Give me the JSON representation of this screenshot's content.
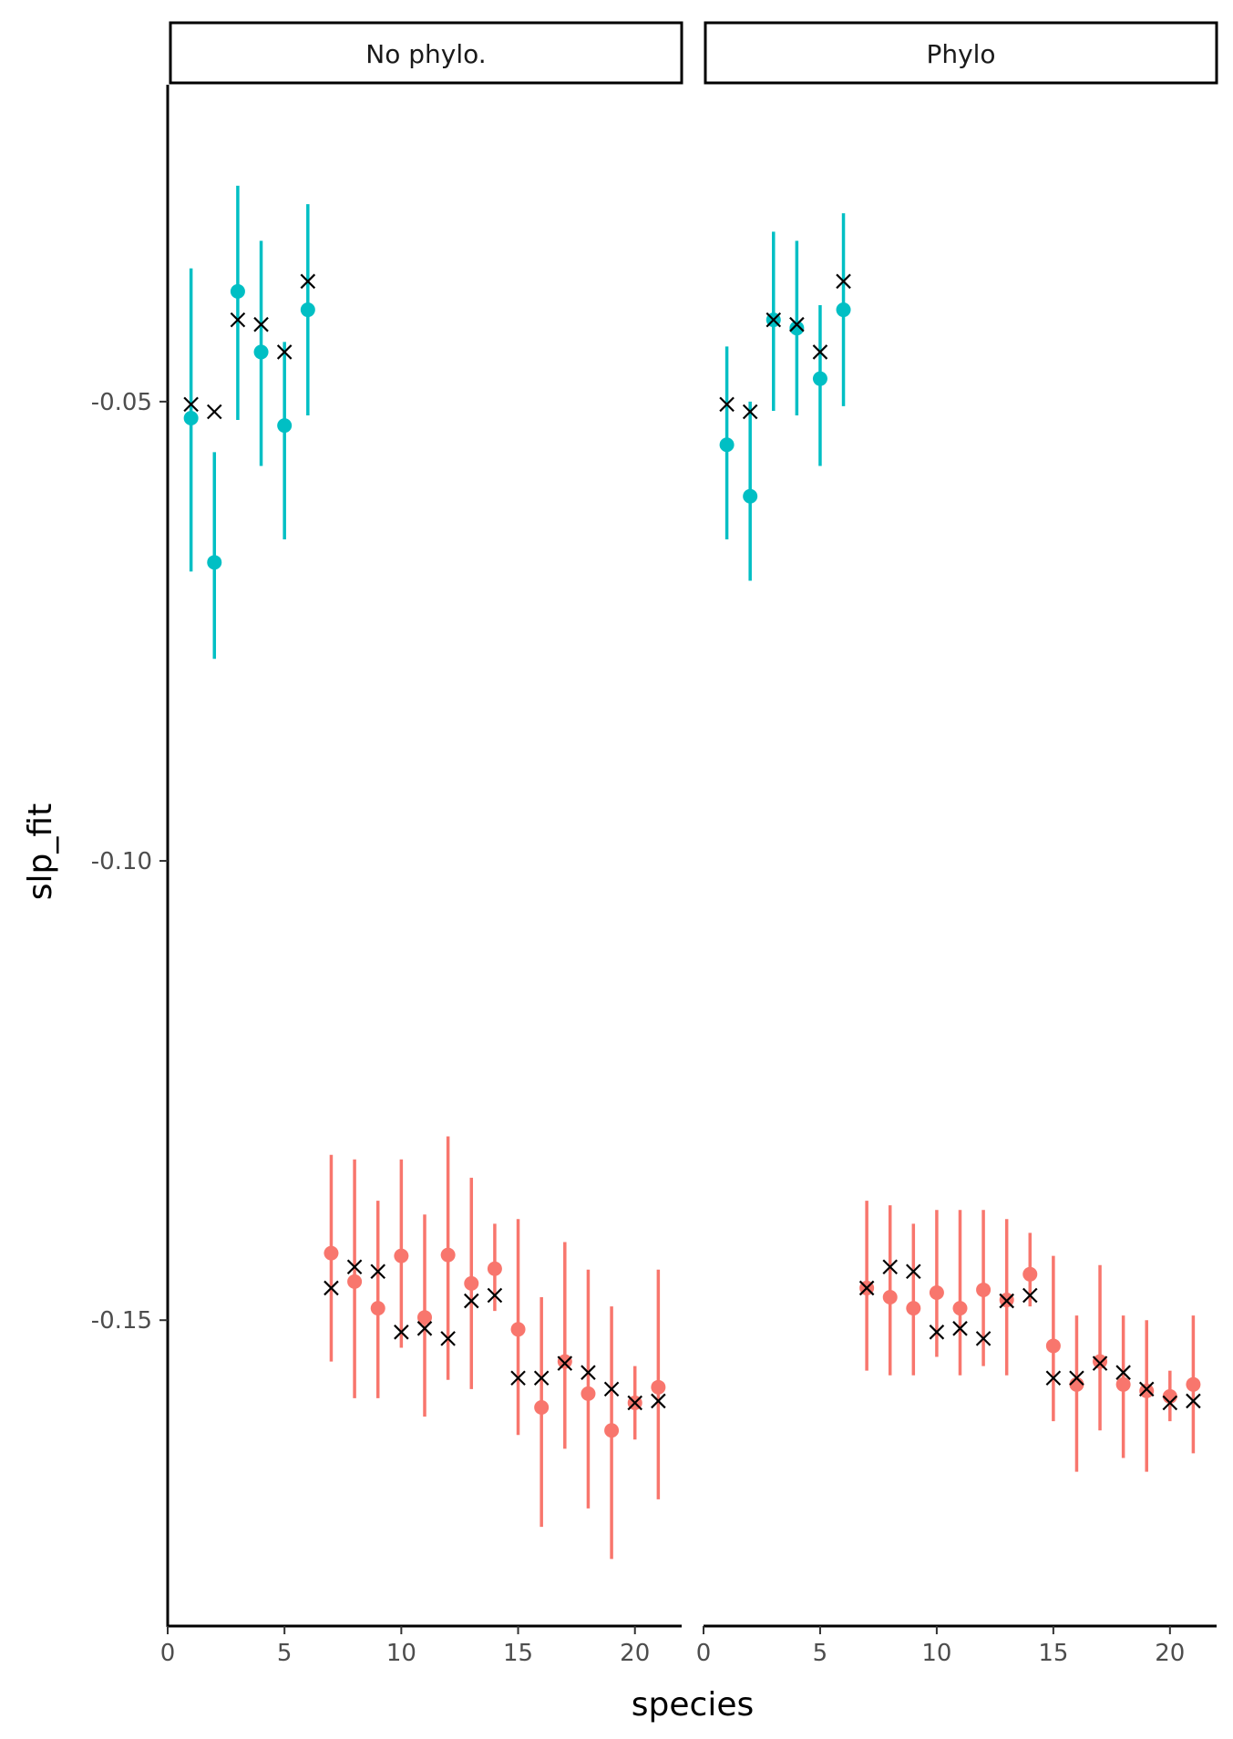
{
  "chart_data": {
    "type": "scatter",
    "xlabel": "species",
    "ylabel": "slp_fit",
    "xlim": [
      0,
      22
    ],
    "ylim": [
      -0.1833,
      -0.0155
    ],
    "x_ticks": [
      0,
      5,
      10,
      15,
      20
    ],
    "x_tick_labels": [
      "0",
      "5",
      "10",
      "15",
      "20"
    ],
    "y_ticks": [
      -0.05,
      -0.1,
      -0.15
    ],
    "y_tick_labels": [
      "-0.05",
      "-0.10",
      "-0.15"
    ],
    "grid": false,
    "legend": "none",
    "colors": {
      "group_a": "#00BFC4",
      "group_b": "#F8766D",
      "true_value": "#000000"
    },
    "species": [
      1,
      2,
      3,
      4,
      5,
      6,
      7,
      8,
      9,
      10,
      11,
      12,
      13,
      14,
      15,
      16,
      17,
      18,
      19,
      20,
      21
    ],
    "group": [
      "a",
      "a",
      "a",
      "a",
      "a",
      "a",
      "b",
      "b",
      "b",
      "b",
      "b",
      "b",
      "b",
      "b",
      "b",
      "b",
      "b",
      "b",
      "b",
      "b",
      "b"
    ],
    "true_slope": [
      -0.0503,
      -0.0511,
      -0.0411,
      -0.0416,
      -0.0446,
      -0.0369,
      -0.1465,
      -0.1442,
      -0.1447,
      -0.1513,
      -0.1509,
      -0.152,
      -0.1479,
      -0.1473,
      -0.1563,
      -0.1563,
      -0.1547,
      -0.1557,
      -0.1575,
      -0.159,
      -0.1588
    ],
    "panels": [
      {
        "strip": "No phylo.",
        "fit": [
          -0.0518,
          -0.0675,
          -0.038,
          -0.0446,
          -0.0526,
          -0.04,
          -0.1427,
          -0.1458,
          -0.1487,
          -0.143,
          -0.1497,
          -0.1429,
          -0.146,
          -0.1444,
          -0.151,
          -0.1595,
          -0.1545,
          -0.158,
          -0.162,
          -0.159,
          -0.1573
        ],
        "lower": [
          -0.0685,
          -0.078,
          -0.052,
          -0.057,
          -0.065,
          -0.0515,
          -0.1545,
          -0.1585,
          -0.1585,
          -0.153,
          -0.1605,
          -0.1565,
          -0.1575,
          -0.149,
          -0.1625,
          -0.1725,
          -0.164,
          -0.1705,
          -0.176,
          -0.163,
          -0.1695
        ],
        "upper": [
          -0.0355,
          -0.0555,
          -0.0265,
          -0.0325,
          -0.0435,
          -0.0285,
          -0.132,
          -0.1325,
          -0.137,
          -0.1325,
          -0.1385,
          -0.13,
          -0.1345,
          -0.1395,
          -0.139,
          -0.1475,
          -0.1415,
          -0.1445,
          -0.1485,
          -0.155,
          -0.1445
        ]
      },
      {
        "strip": "Phylo",
        "fit": [
          -0.0547,
          -0.0603,
          -0.0411,
          -0.042,
          -0.0475,
          -0.04,
          -0.1465,
          -0.1475,
          -0.1487,
          -0.147,
          -0.1487,
          -0.1467,
          -0.1478,
          -0.145,
          -0.1528,
          -0.157,
          -0.1545,
          -0.157,
          -0.1577,
          -0.1583,
          -0.157
        ],
        "lower": [
          -0.065,
          -0.0695,
          -0.051,
          -0.0515,
          -0.057,
          -0.0505,
          -0.1555,
          -0.156,
          -0.156,
          -0.154,
          -0.156,
          -0.155,
          -0.156,
          -0.1485,
          -0.161,
          -0.1665,
          -0.162,
          -0.165,
          -0.1665,
          -0.161,
          -0.1645
        ],
        "upper": [
          -0.044,
          -0.05,
          -0.0315,
          -0.0325,
          -0.0395,
          -0.0295,
          -0.137,
          -0.1375,
          -0.1395,
          -0.138,
          -0.138,
          -0.138,
          -0.139,
          -0.1405,
          -0.143,
          -0.1495,
          -0.144,
          -0.1495,
          -0.15,
          -0.1555,
          -0.1495
        ]
      }
    ]
  }
}
